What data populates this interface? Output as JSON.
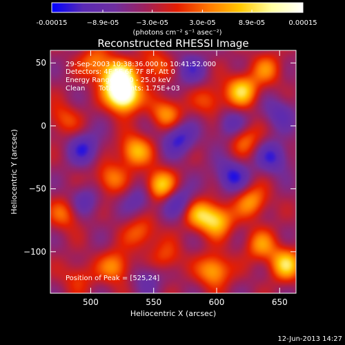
{
  "chart_data": {
    "type": "heatmap",
    "title": "Reconstructed RHESSI Image",
    "xlabel": "Heliocentric X (arcsec)",
    "ylabel": "Heliocentric Y (arcsec)",
    "xlim": [
      468,
      663
    ],
    "ylim": [
      -133,
      60
    ],
    "x_ticks": [
      500,
      550,
      600,
      650
    ],
    "y_ticks": [
      50,
      0,
      -50,
      -100
    ],
    "colorbar": {
      "range": [
        -0.00015,
        0.00015
      ],
      "tick_values": [
        -0.00015,
        -8.9e-05,
        -3e-05,
        3e-05,
        8.9e-05,
        0.00015
      ],
      "tick_labels": [
        "-0.00015",
        "−8.9e-05",
        "−3.0e-05",
        "3.0e-05",
        "8.9e-05",
        "0.00015"
      ],
      "unit_label": "(photons cm⁻² s⁻¹ asec⁻²)",
      "colormap": [
        "#0000ff",
        "#5a2ab4",
        "#6e2ea0",
        "#a0205a",
        "#e61e00",
        "#ff7800",
        "#ffc800",
        "#ffffa0",
        "#ffffff"
      ]
    },
    "annotations": {
      "time": "29-Sep-2003 10:38:36.000 to 10:41:52.000",
      "detectors": "Detectors: 4F 5F 6F 7F 8F, Att 0",
      "energy": "Energy Range: 12.0 - 25.0 keV",
      "clean": "Clean",
      "counts": "Total Counts: 1.75E+03",
      "peak": "Position of Peak = [525,24]"
    },
    "sources": [
      {
        "x": 522,
        "y": 38,
        "w": 0.00017
      },
      {
        "x": 526,
        "y": 24,
        "w": 0.0002
      },
      {
        "x": 504,
        "y": 50,
        "w": 8e-05
      },
      {
        "x": 550,
        "y": 48,
        "w": 7e-05
      },
      {
        "x": 560,
        "y": 10,
        "w": 9e-05
      },
      {
        "x": 535,
        "y": -20,
        "w": 0.00011
      },
      {
        "x": 515,
        "y": -42,
        "w": 8e-05
      },
      {
        "x": 555,
        "y": -48,
        "w": 0.00013
      },
      {
        "x": 540,
        "y": -85,
        "w": 7e-05
      },
      {
        "x": 520,
        "y": -112,
        "w": 9e-05
      },
      {
        "x": 560,
        "y": -105,
        "w": 6e-05
      },
      {
        "x": 595,
        "y": 20,
        "w": 6e-05
      },
      {
        "x": 585,
        "y": -70,
        "w": 9e-05
      },
      {
        "x": 600,
        "y": -75,
        "w": 0.00012
      },
      {
        "x": 598,
        "y": -115,
        "w": 0.00011
      },
      {
        "x": 620,
        "y": 28,
        "w": 0.00012
      },
      {
        "x": 622,
        "y": -10,
        "w": 8e-05
      },
      {
        "x": 628,
        "y": -60,
        "w": 9e-05
      },
      {
        "x": 635,
        "y": -95,
        "w": 8e-05
      },
      {
        "x": 655,
        "y": -110,
        "w": 0.00012
      },
      {
        "x": 640,
        "y": 45,
        "w": 7e-05
      },
      {
        "x": 480,
        "y": -70,
        "w": 7e-05
      },
      {
        "x": 478,
        "y": 5,
        "w": 6e-05
      },
      {
        "x": 490,
        "y": -120,
        "w": 5e-05
      }
    ],
    "sinks": [
      {
        "x": 495,
        "y": -18,
        "w": 8e-05
      },
      {
        "x": 495,
        "y": -60,
        "w": 6e-05
      },
      {
        "x": 570,
        "y": -10,
        "w": 9e-05
      },
      {
        "x": 570,
        "y": -60,
        "w": 8e-05
      },
      {
        "x": 540,
        "y": -58,
        "w": 6e-05
      },
      {
        "x": 612,
        "y": -40,
        "w": 9e-05
      },
      {
        "x": 645,
        "y": -25,
        "w": 8e-05
      },
      {
        "x": 612,
        "y": 0,
        "w": 7e-05
      },
      {
        "x": 580,
        "y": 45,
        "w": 6e-05
      },
      {
        "x": 545,
        "y": -120,
        "w": 5e-05
      },
      {
        "x": 650,
        "y": 10,
        "w": 6e-05
      }
    ]
  },
  "footer": {
    "date": "12-Jun-2013 14:27"
  }
}
